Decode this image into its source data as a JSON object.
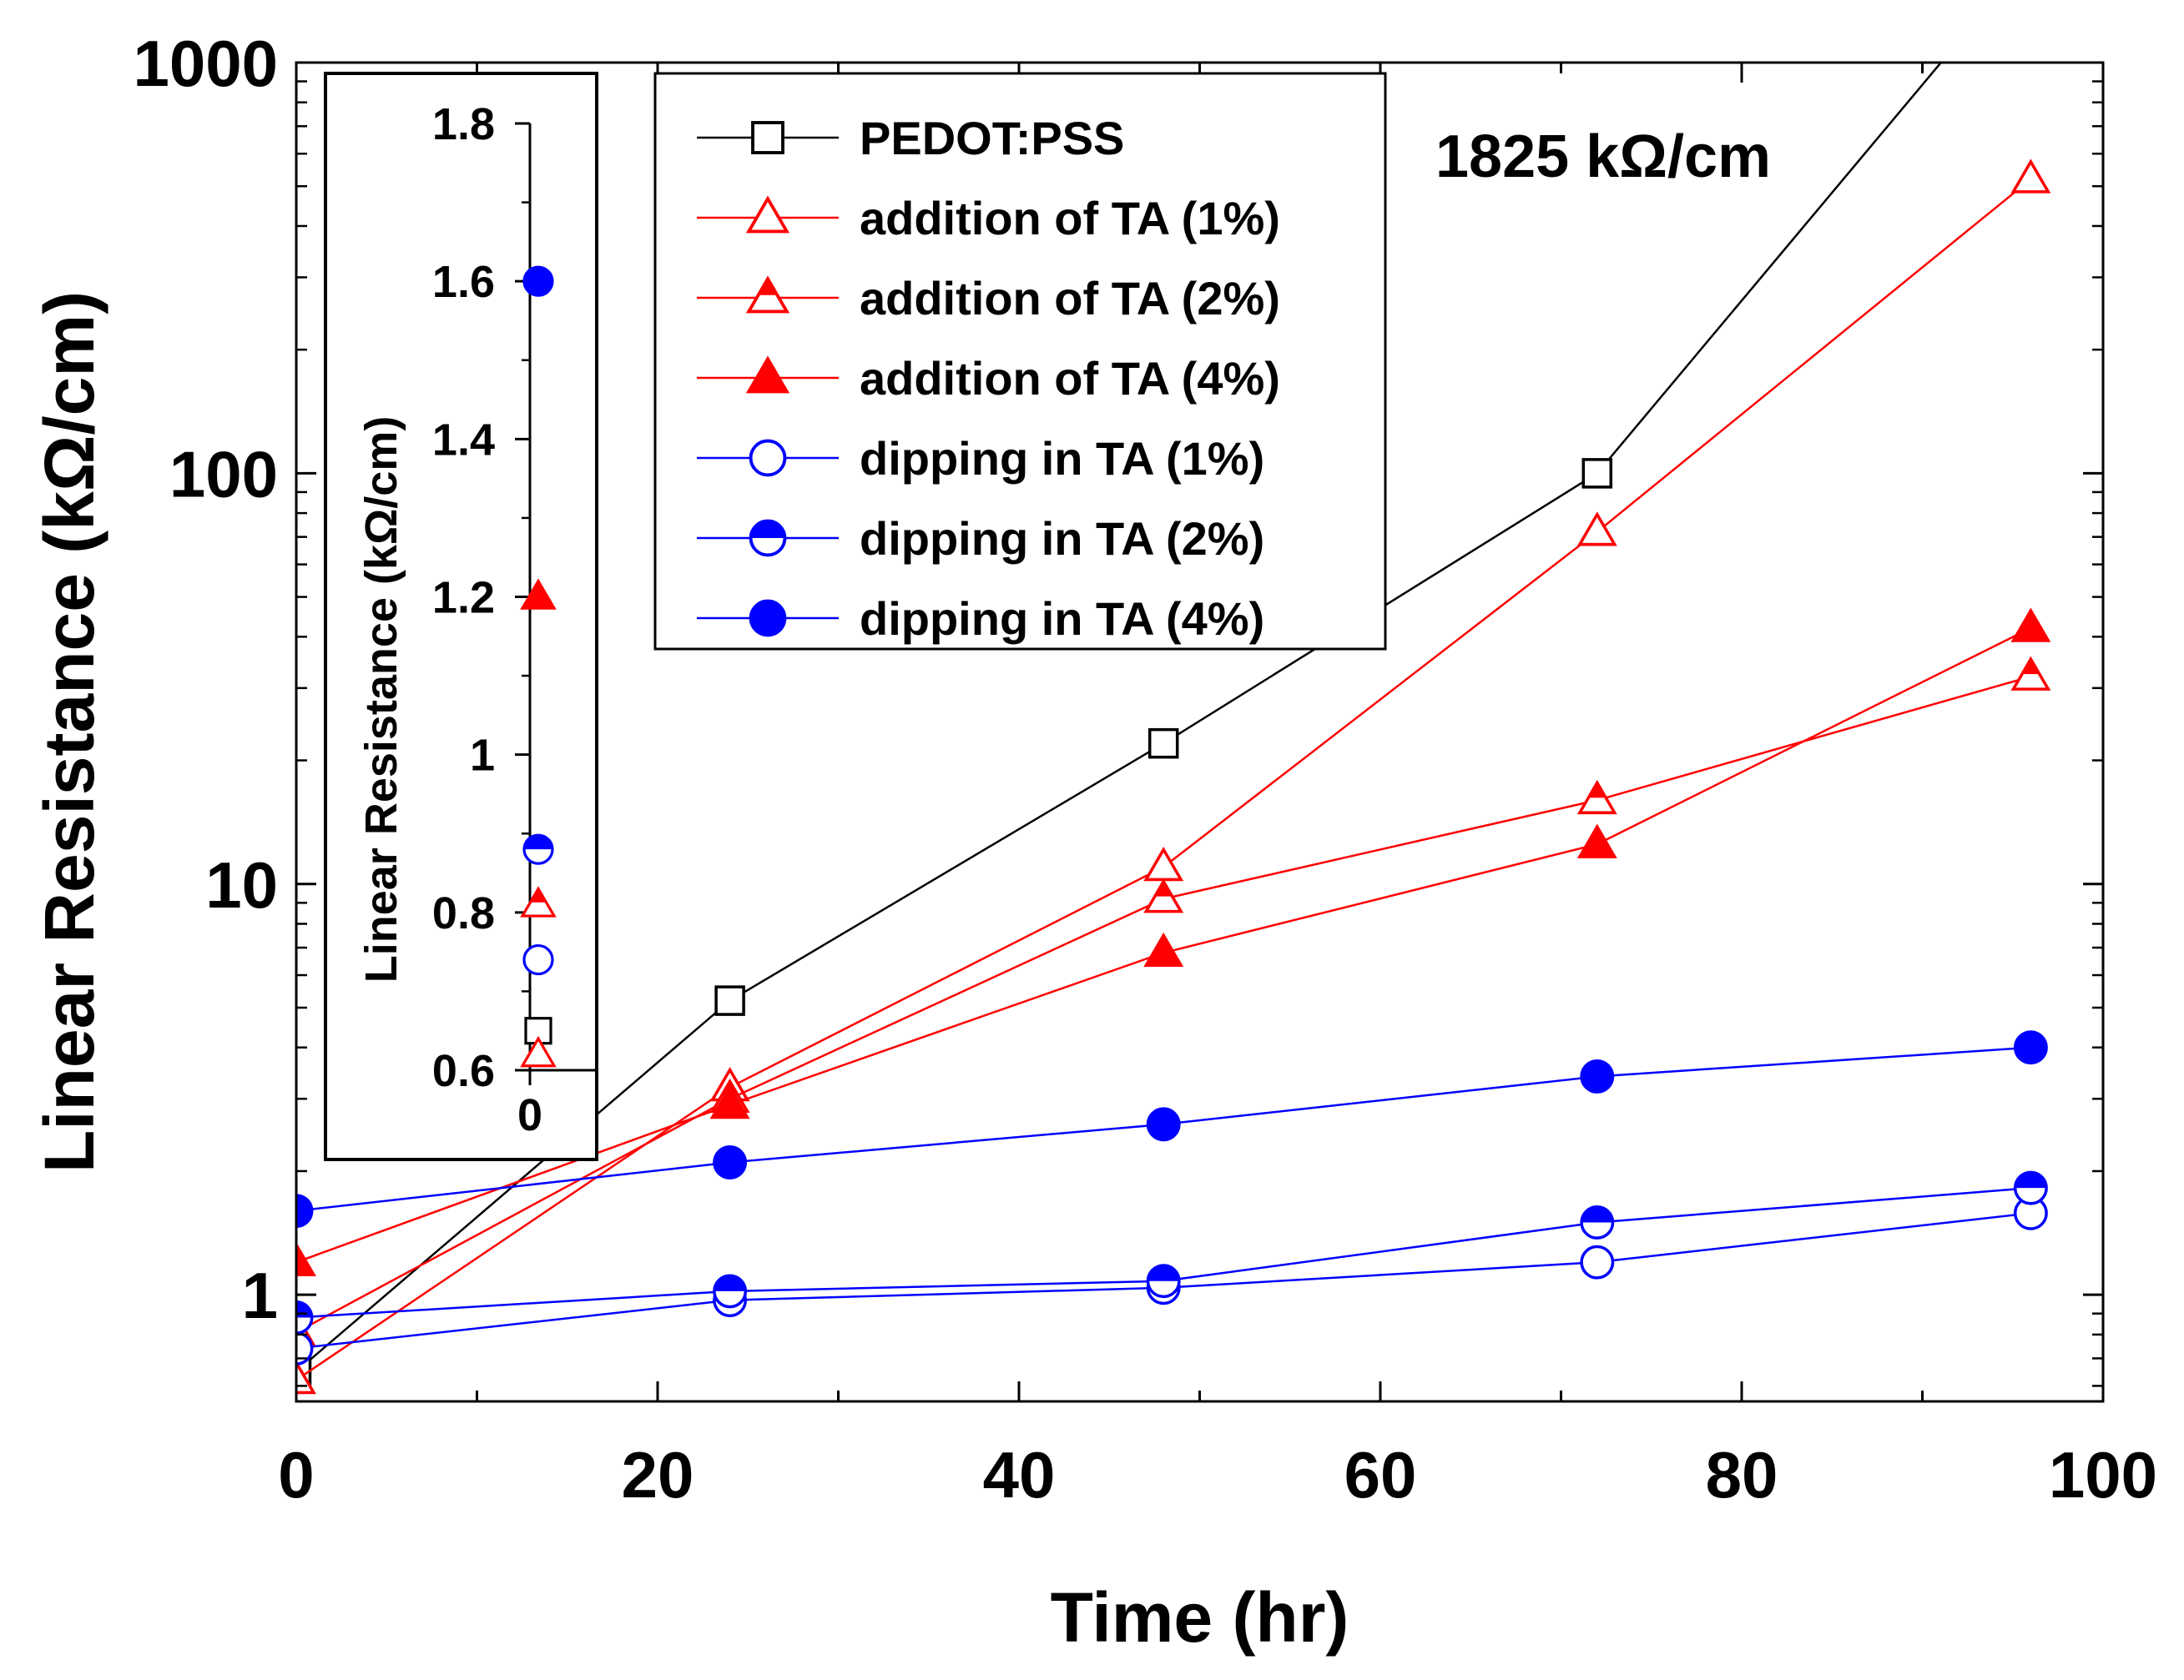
{
  "chart_data": [
    {
      "type": "line",
      "title": "",
      "xlabel": "Time (hr)",
      "ylabel": "Linear Resistance (kΩ/cm)",
      "xscale": "linear",
      "yscale": "log",
      "xlim": [
        0,
        100
      ],
      "ylim": [
        0.55,
        1000
      ],
      "xticks": [
        0,
        20,
        40,
        60,
        80,
        100
      ],
      "xtick_labels": [
        "0",
        "20",
        "40",
        "60",
        "80",
        "100"
      ],
      "yticks": [
        1,
        10,
        100,
        1000
      ],
      "ytick_labels": [
        "1",
        "10",
        "100",
        "1000"
      ],
      "grid": false,
      "legend_position": "top-center",
      "annotation": "1825 kΩ/cm",
      "series": [
        {
          "name": "PEDOT:PSS",
          "color": "#000000",
          "marker": "square-open",
          "x": [
            0,
            24,
            48,
            72,
            96
          ],
          "y": [
            0.65,
            5.2,
            22,
            100,
            1825
          ]
        },
        {
          "name": "addition of TA (1%)",
          "color": "#ff0000",
          "marker": "triangle-open",
          "x": [
            0,
            24,
            48,
            72,
            96
          ],
          "y": [
            0.62,
            3.2,
            11,
            72,
            520
          ]
        },
        {
          "name": "addition of TA (2%)",
          "color": "#ff0000",
          "marker": "triangle-half",
          "x": [
            0,
            24,
            48,
            72,
            96
          ],
          "y": [
            0.81,
            3.0,
            9.2,
            16,
            32
          ]
        },
        {
          "name": "addition of TA (4%)",
          "color": "#ff0000",
          "marker": "triangle-filled",
          "x": [
            0,
            24,
            48,
            72,
            96
          ],
          "y": [
            1.2,
            2.9,
            6.8,
            12.5,
            42
          ]
        },
        {
          "name": "dipping in TA (1%)",
          "color": "#0000ff",
          "marker": "circle-open",
          "x": [
            0,
            24,
            48,
            72,
            96
          ],
          "y": [
            0.74,
            0.97,
            1.04,
            1.2,
            1.58
          ]
        },
        {
          "name": "dipping in TA (2%)",
          "color": "#0000ff",
          "marker": "circle-half",
          "x": [
            0,
            24,
            48,
            72,
            96
          ],
          "y": [
            0.88,
            1.02,
            1.08,
            1.5,
            1.82
          ]
        },
        {
          "name": "dipping in TA (4%)",
          "color": "#0000ff",
          "marker": "circle-filled",
          "x": [
            0,
            24,
            48,
            72,
            96
          ],
          "y": [
            1.6,
            2.1,
            2.6,
            3.4,
            4.0
          ]
        }
      ]
    },
    {
      "type": "scatter",
      "title": "inset",
      "xlabel": "",
      "ylabel": "Linear Resistance (kΩ/cm)",
      "xlim": [
        0,
        0.1
      ],
      "ylim": [
        0.6,
        1.8
      ],
      "xticks": [
        0
      ],
      "xtick_labels": [
        "0"
      ],
      "yticks": [
        0.6,
        0.8,
        1,
        1.2,
        1.4,
        1.6,
        1.8
      ],
      "ytick_labels": [
        "0.6",
        "0.8",
        "1",
        "1.2",
        "1.4",
        "1.6",
        "1.8"
      ],
      "points": [
        {
          "name": "PEDOT:PSS",
          "x": 0,
          "y": 0.65
        },
        {
          "name": "addition of TA (1%)",
          "x": 0,
          "y": 0.62
        },
        {
          "name": "addition of TA (2%)",
          "x": 0,
          "y": 0.81
        },
        {
          "name": "addition of TA (4%)",
          "x": 0,
          "y": 1.2
        },
        {
          "name": "dipping in TA (1%)",
          "x": 0,
          "y": 0.74
        },
        {
          "name": "dipping in TA (2%)",
          "x": 0,
          "y": 0.88
        },
        {
          "name": "dipping in TA (4%)",
          "x": 0,
          "y": 1.6
        }
      ]
    }
  ]
}
